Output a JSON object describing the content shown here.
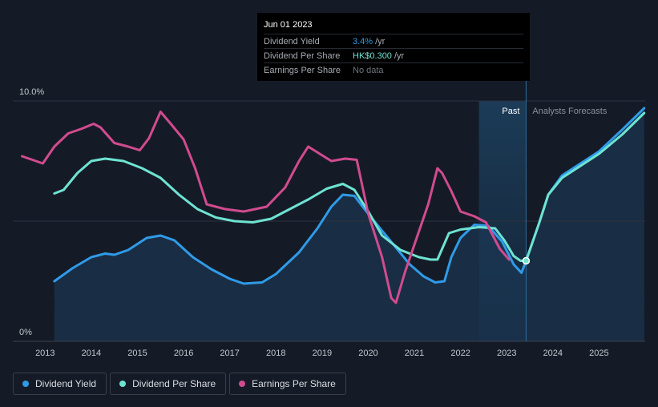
{
  "tooltip": {
    "date": "Jun 01 2023",
    "rows": [
      {
        "label": "Dividend Yield",
        "value": "3.4%",
        "unit": "/yr"
      },
      {
        "label": "Dividend Per Share",
        "value": "HK$0.300",
        "unit": "/yr"
      },
      {
        "label": "Earnings Per Share",
        "value": "No data",
        "unit": ""
      }
    ]
  },
  "legend": [
    {
      "label": "Dividend Yield",
      "color": "#2f9be8"
    },
    {
      "label": "Dividend Per Share",
      "color": "#6ee3d2"
    },
    {
      "label": "Earnings Per Share",
      "color": "#d14b8f"
    }
  ],
  "chart_data": {
    "type": "line",
    "title": "",
    "ylabel": "",
    "xlabel": "",
    "y_tick_labels": [
      "0%",
      "10.0%"
    ],
    "ylim": [
      0,
      10
    ],
    "xlim": [
      2012.3,
      2026.0
    ],
    "x_ticks": [
      2013,
      2014,
      2015,
      2016,
      2017,
      2018,
      2019,
      2020,
      2021,
      2022,
      2023,
      2024,
      2025
    ],
    "past_label": "Past",
    "forecast_label": "Analysts Forecasts",
    "forecast_start": 2022.4,
    "marker_x": 2023.42,
    "series": [
      {
        "name": "Dividend Yield",
        "color": "#2f9be8",
        "filled": true,
        "points": [
          [
            2013.2,
            2.5
          ],
          [
            2013.6,
            3.05
          ],
          [
            2014.0,
            3.5
          ],
          [
            2014.3,
            3.65
          ],
          [
            2014.5,
            3.6
          ],
          [
            2014.8,
            3.8
          ],
          [
            2015.2,
            4.3
          ],
          [
            2015.5,
            4.4
          ],
          [
            2015.8,
            4.2
          ],
          [
            2016.2,
            3.5
          ],
          [
            2016.6,
            3.0
          ],
          [
            2017.0,
            2.6
          ],
          [
            2017.3,
            2.4
          ],
          [
            2017.7,
            2.45
          ],
          [
            2018.0,
            2.8
          ],
          [
            2018.5,
            3.7
          ],
          [
            2018.9,
            4.7
          ],
          [
            2019.2,
            5.6
          ],
          [
            2019.45,
            6.1
          ],
          [
            2019.7,
            6.05
          ],
          [
            2020.0,
            5.3
          ],
          [
            2020.3,
            4.6
          ],
          [
            2020.6,
            3.9
          ],
          [
            2020.9,
            3.2
          ],
          [
            2021.2,
            2.7
          ],
          [
            2021.45,
            2.45
          ],
          [
            2021.65,
            2.5
          ],
          [
            2021.8,
            3.5
          ],
          [
            2022.0,
            4.3
          ],
          [
            2022.3,
            4.85
          ],
          [
            2022.6,
            4.8
          ],
          [
            2022.9,
            4.15
          ],
          [
            2023.15,
            3.2
          ],
          [
            2023.32,
            2.85
          ],
          [
            2023.42,
            3.35
          ],
          [
            2023.7,
            4.9
          ],
          [
            2023.9,
            6.1
          ],
          [
            2024.2,
            6.9
          ],
          [
            2024.6,
            7.4
          ],
          [
            2025.0,
            7.9
          ],
          [
            2025.5,
            8.8
          ],
          [
            2025.98,
            9.7
          ]
        ]
      },
      {
        "name": "Dividend Per Share",
        "color": "#6ee3d2",
        "filled": false,
        "points": [
          [
            2013.2,
            6.15
          ],
          [
            2013.4,
            6.3
          ],
          [
            2013.7,
            7.0
          ],
          [
            2014.0,
            7.5
          ],
          [
            2014.3,
            7.6
          ],
          [
            2014.7,
            7.5
          ],
          [
            2015.1,
            7.2
          ],
          [
            2015.5,
            6.8
          ],
          [
            2015.9,
            6.1
          ],
          [
            2016.3,
            5.5
          ],
          [
            2016.7,
            5.15
          ],
          [
            2017.1,
            5.0
          ],
          [
            2017.5,
            4.95
          ],
          [
            2017.9,
            5.1
          ],
          [
            2018.3,
            5.5
          ],
          [
            2018.7,
            5.9
          ],
          [
            2019.1,
            6.35
          ],
          [
            2019.45,
            6.55
          ],
          [
            2019.7,
            6.3
          ],
          [
            2020.0,
            5.4
          ],
          [
            2020.3,
            4.4
          ],
          [
            2020.7,
            3.8
          ],
          [
            2021.1,
            3.5
          ],
          [
            2021.35,
            3.4
          ],
          [
            2021.5,
            3.4
          ],
          [
            2021.75,
            4.5
          ],
          [
            2022.0,
            4.65
          ],
          [
            2022.4,
            4.75
          ],
          [
            2022.75,
            4.7
          ],
          [
            2022.95,
            4.2
          ],
          [
            2023.15,
            3.55
          ],
          [
            2023.3,
            3.35
          ],
          [
            2023.42,
            3.35
          ],
          [
            2023.7,
            4.9
          ],
          [
            2023.9,
            6.1
          ],
          [
            2024.2,
            6.8
          ],
          [
            2024.6,
            7.3
          ],
          [
            2025.0,
            7.8
          ],
          [
            2025.5,
            8.6
          ],
          [
            2025.98,
            9.5
          ]
        ]
      },
      {
        "name": "Earnings Per Share",
        "color": "#d14b8f",
        "filled": false,
        "points": [
          [
            2012.5,
            7.7
          ],
          [
            2012.8,
            7.5
          ],
          [
            2012.95,
            7.4
          ],
          [
            2013.2,
            8.1
          ],
          [
            2013.5,
            8.65
          ],
          [
            2013.8,
            8.85
          ],
          [
            2014.05,
            9.05
          ],
          [
            2014.2,
            8.9
          ],
          [
            2014.5,
            8.25
          ],
          [
            2014.8,
            8.1
          ],
          [
            2015.05,
            7.95
          ],
          [
            2015.25,
            8.45
          ],
          [
            2015.5,
            9.55
          ],
          [
            2015.7,
            9.1
          ],
          [
            2016.0,
            8.4
          ],
          [
            2016.25,
            7.2
          ],
          [
            2016.5,
            5.7
          ],
          [
            2016.9,
            5.5
          ],
          [
            2017.3,
            5.4
          ],
          [
            2017.8,
            5.6
          ],
          [
            2018.2,
            6.4
          ],
          [
            2018.5,
            7.5
          ],
          [
            2018.7,
            8.1
          ],
          [
            2018.95,
            7.8
          ],
          [
            2019.2,
            7.5
          ],
          [
            2019.5,
            7.6
          ],
          [
            2019.75,
            7.55
          ],
          [
            2020.0,
            5.3
          ],
          [
            2020.3,
            3.5
          ],
          [
            2020.5,
            1.8
          ],
          [
            2020.6,
            1.6
          ],
          [
            2020.8,
            2.9
          ],
          [
            2021.05,
            4.3
          ],
          [
            2021.3,
            5.7
          ],
          [
            2021.5,
            7.2
          ],
          [
            2021.6,
            7.0
          ],
          [
            2021.8,
            6.25
          ],
          [
            2022.0,
            5.4
          ],
          [
            2022.3,
            5.2
          ],
          [
            2022.55,
            4.95
          ],
          [
            2022.7,
            4.4
          ],
          [
            2022.85,
            3.85
          ],
          [
            2023.05,
            3.4
          ]
        ]
      }
    ]
  }
}
